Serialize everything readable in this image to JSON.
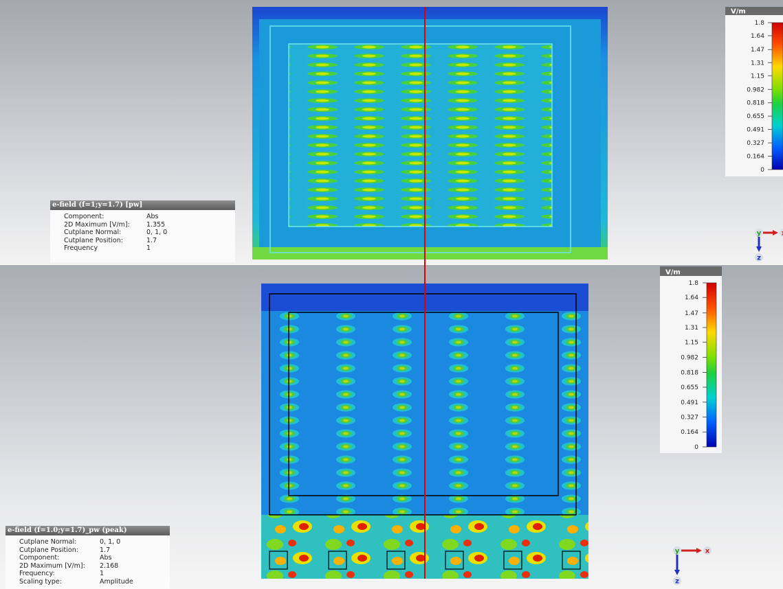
{
  "top": {
    "info": {
      "title": "e-field (f=1;y=1.7) [pw]",
      "rows": [
        [
          "Component:",
          "Abs"
        ],
        [
          "2D Maximum [V/m]:",
          "1.355"
        ],
        [
          "Cutplane Normal:",
          "0, 1, 0"
        ],
        [
          "Cutplane Position:",
          "1.7"
        ],
        [
          "Frequency",
          "1"
        ]
      ]
    },
    "colorbar": {
      "unit": "V/m",
      "ticks": [
        1.8,
        1.64,
        1.47,
        1.31,
        1.15,
        0.982,
        0.818,
        0.655,
        0.491,
        0.327,
        0.164,
        0
      ]
    },
    "axes": {
      "y": "y",
      "x": "x",
      "z": "z"
    }
  },
  "bottom": {
    "info": {
      "title": "e-field (f=1.0;y=1.7)_pw (peak)",
      "rows": [
        [
          "Cutplane Normal:",
          "0, 1, 0"
        ],
        [
          "Cutplane Position:",
          "1.7"
        ],
        [
          "Component:",
          "Abs"
        ],
        [
          "2D Maximum [V/m]:",
          "2.168"
        ],
        [
          "Frequency:",
          "1"
        ],
        [
          "Scaling type:",
          "Amplitude"
        ]
      ]
    },
    "colorbar": {
      "unit": "V/m",
      "ticks": [
        1.8,
        1.64,
        1.47,
        1.31,
        1.15,
        0.982,
        0.818,
        0.655,
        0.491,
        0.327,
        0.164,
        0
      ]
    },
    "axes": {
      "y": "y",
      "x": "x",
      "z": "z"
    }
  }
}
